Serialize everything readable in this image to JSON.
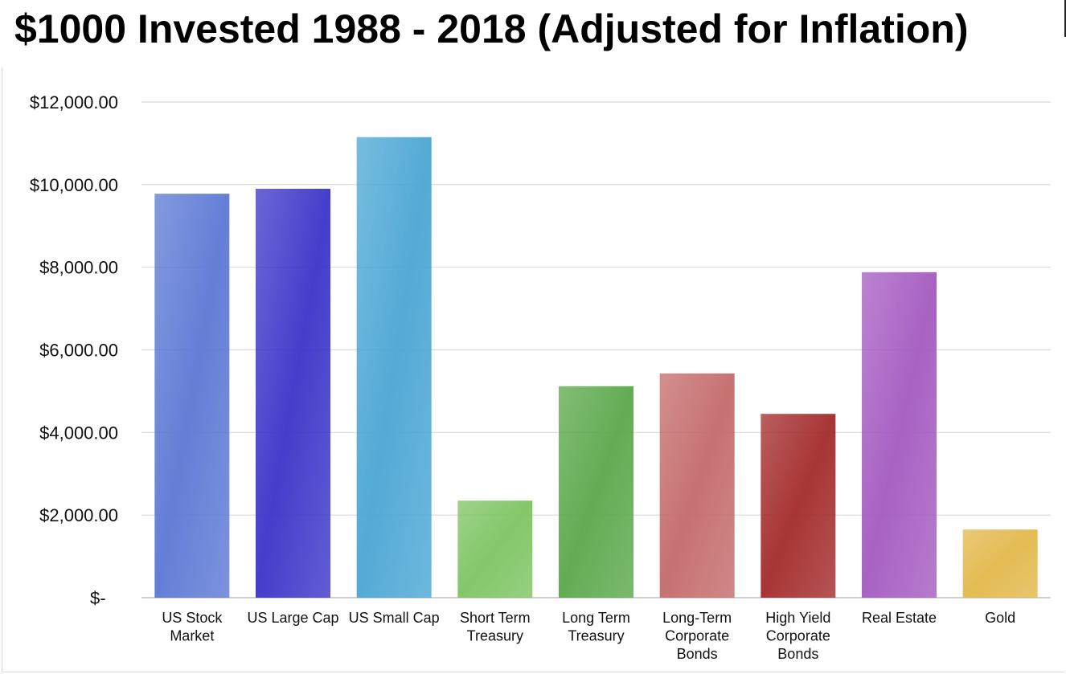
{
  "title": "$1000 Invested 1988 - 2018 (Adjusted for Inflation)",
  "chart_data": {
    "type": "bar",
    "title": "$1000 Invested 1988 - 2018 (Adjusted for Inflation)",
    "categories": [
      "US Stock Market",
      "US Large Cap",
      "US Small Cap",
      "Short Term Treasury",
      "Long Term Treasury",
      "Long-Term Corporate Bonds",
      "High Yield Corporate Bonds",
      "Real Estate",
      "Gold"
    ],
    "category_lines": [
      [
        "US Stock",
        "Market"
      ],
      [
        "US Large Cap"
      ],
      [
        "US Small Cap"
      ],
      [
        "Short Term",
        "Treasury"
      ],
      [
        "Long Term",
        "Treasury"
      ],
      [
        "Long-Term",
        "Corporate",
        "Bonds"
      ],
      [
        "High Yield",
        "Corporate",
        "Bonds"
      ],
      [
        "Real Estate"
      ],
      [
        "Gold"
      ]
    ],
    "values": [
      9780,
      9900,
      11150,
      2350,
      5120,
      5430,
      4450,
      7880,
      1650
    ],
    "colors": [
      "#5b78d4",
      "#3a34c8",
      "#4aa6d4",
      "#7dc462",
      "#5aa84a",
      "#c46a6a",
      "#a32a2a",
      "#a45ac0",
      "#e2b84a"
    ],
    "ylim": [
      0,
      12000
    ],
    "yticks": [
      0,
      2000,
      4000,
      6000,
      8000,
      10000,
      12000
    ],
    "ytick_labels": [
      "$-",
      "$2,000.00",
      "$4,000.00",
      "$6,000.00",
      "$8,000.00",
      "$10,000.00",
      "$12,000.00"
    ],
    "xlabel": "",
    "ylabel": "",
    "grid": true,
    "legend": "none"
  }
}
